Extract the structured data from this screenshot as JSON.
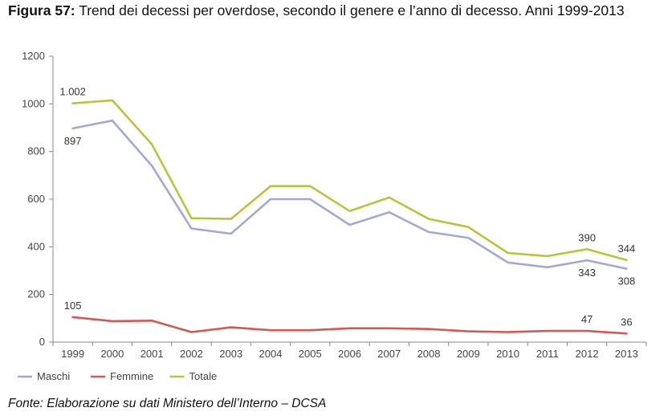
{
  "figure": {
    "label": "Figura 57:",
    "title_text": "Trend dei decessi per overdose, secondo il genere e l’anno di decesso. Anni 1999-2013",
    "source": "Fonte: Elaborazione su dati Ministero dell’Interno – DCSA"
  },
  "chart_data": {
    "type": "line",
    "title": "Trend dei decessi per overdose, secondo il genere e l’anno di decesso. Anni 1999-2013",
    "xlabel": "",
    "ylabel": "",
    "ylim": [
      0,
      1200
    ],
    "yticks": [
      0,
      200,
      400,
      600,
      800,
      1000,
      1200
    ],
    "categories": [
      "1999",
      "2000",
      "2001",
      "2002",
      "2003",
      "2004",
      "2005",
      "2006",
      "2007",
      "2008",
      "2009",
      "2010",
      "2011",
      "2012",
      "2013"
    ],
    "legend_position": "bottom-left",
    "grid": false,
    "series": [
      {
        "name": "Maschi",
        "color": "#a4a9d4",
        "values": [
          897,
          930,
          740,
          477,
          455,
          600,
          600,
          492,
          545,
          462,
          438,
          334,
          314,
          343,
          308
        ]
      },
      {
        "name": "Femmine",
        "color": "#d25a55",
        "values": [
          105,
          88,
          90,
          42,
          62,
          50,
          50,
          58,
          58,
          55,
          45,
          42,
          47,
          47,
          36
        ]
      },
      {
        "name": "Totale",
        "color": "#bcc23a",
        "values": [
          1002,
          1015,
          830,
          520,
          517,
          655,
          655,
          550,
          607,
          517,
          483,
          374,
          361,
          390,
          344
        ]
      }
    ],
    "annotations": [
      {
        "series": "Totale",
        "category": "1999",
        "text": "1.002",
        "pos": "above"
      },
      {
        "series": "Maschi",
        "category": "1999",
        "text": "897",
        "pos": "below"
      },
      {
        "series": "Femmine",
        "category": "1999",
        "text": "105",
        "pos": "above"
      },
      {
        "series": "Totale",
        "category": "2012",
        "text": "390",
        "pos": "above"
      },
      {
        "series": "Maschi",
        "category": "2012",
        "text": "343",
        "pos": "below"
      },
      {
        "series": "Totale",
        "category": "2013",
        "text": "344",
        "pos": "above"
      },
      {
        "series": "Maschi",
        "category": "2013",
        "text": "308",
        "pos": "below"
      },
      {
        "series": "Femmine",
        "category": "2012",
        "text": "47",
        "pos": "above"
      },
      {
        "series": "Femmine",
        "category": "2013",
        "text": "36",
        "pos": "above"
      }
    ]
  }
}
